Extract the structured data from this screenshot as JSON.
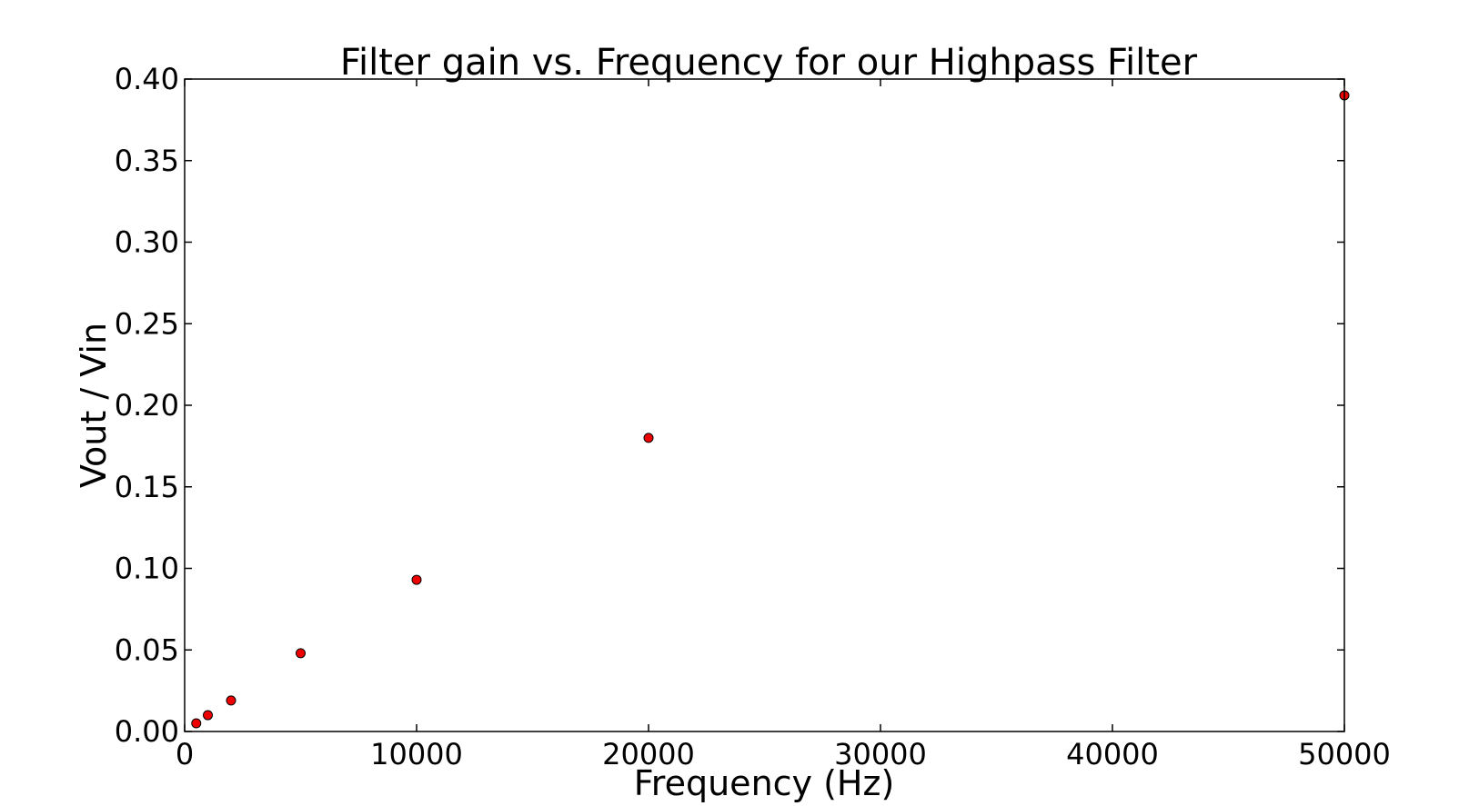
{
  "chart_data": {
    "type": "scatter",
    "title": "Filter gain vs. Frequency for our Highpass Filter",
    "xlabel": "Frequency (Hz)",
    "ylabel": "Vout / Vin",
    "xlim": [
      0,
      50000
    ],
    "ylim": [
      0,
      0.4
    ],
    "xticks": [
      "0",
      "10000",
      "20000",
      "30000",
      "40000",
      "50000"
    ],
    "yticks": [
      "0.00",
      "0.05",
      "0.10",
      "0.15",
      "0.20",
      "0.25",
      "0.30",
      "0.35",
      "0.40"
    ],
    "grid": false,
    "marker_color": "#ee0000",
    "points": [
      {
        "x": 500,
        "y": 0.005
      },
      {
        "x": 1000,
        "y": 0.01
      },
      {
        "x": 2000,
        "y": 0.019
      },
      {
        "x": 5000,
        "y": 0.048
      },
      {
        "x": 10000,
        "y": 0.093
      },
      {
        "x": 20000,
        "y": 0.18
      },
      {
        "x": 50000,
        "y": 0.39
      }
    ]
  }
}
